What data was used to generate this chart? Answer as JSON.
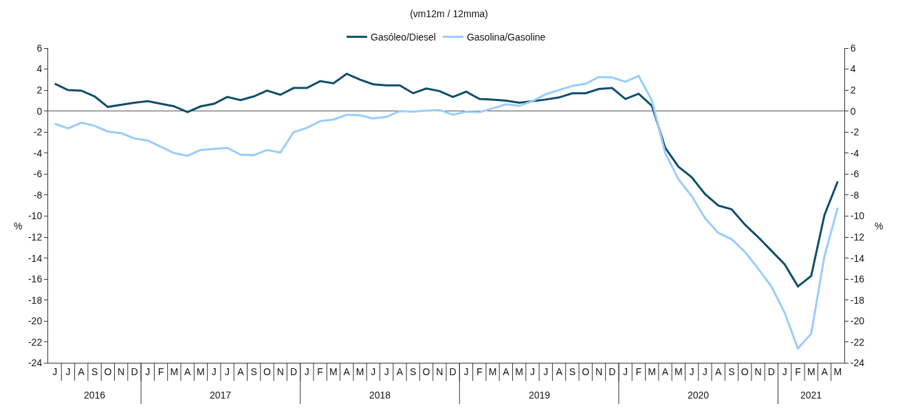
{
  "chart_data": {
    "type": "line",
    "title": "(vm12m / 12mma)",
    "ylabel": "%",
    "y2label": "%",
    "categories": [
      "J",
      "J",
      "A",
      "S",
      "O",
      "N",
      "D",
      "J",
      "F",
      "M",
      "A",
      "M",
      "J",
      "J",
      "A",
      "S",
      "O",
      "N",
      "D",
      "J",
      "F",
      "M",
      "A",
      "M",
      "J",
      "J",
      "A",
      "S",
      "O",
      "N",
      "D",
      "J",
      "F",
      "M",
      "A",
      "M",
      "J",
      "J",
      "A",
      "S",
      "O",
      "N",
      "D",
      "J",
      "F",
      "M",
      "A",
      "M",
      "J",
      "J",
      "A",
      "S",
      "O",
      "N",
      "D",
      "J",
      "F",
      "M",
      "A",
      "M"
    ],
    "series": [
      {
        "name": "Gasóleo/Diesel",
        "color": "#0e4d6b",
        "values": [
          2.6,
          2.0,
          1.95,
          1.4,
          0.4,
          0.6,
          0.8,
          0.95,
          0.7,
          0.45,
          -0.1,
          0.45,
          0.7,
          1.35,
          1.05,
          1.4,
          1.95,
          1.55,
          2.2,
          2.2,
          2.85,
          2.65,
          3.55,
          3.0,
          2.55,
          2.45,
          2.45,
          1.7,
          2.15,
          1.9,
          1.35,
          1.85,
          1.15,
          1.1,
          1.0,
          0.8,
          0.95,
          1.1,
          1.3,
          1.7,
          1.7,
          2.1,
          2.2,
          1.15,
          1.65,
          0.5,
          -3.5,
          -5.3,
          -6.3,
          -7.9,
          -9.0,
          -9.35,
          -10.8,
          -12.0,
          -13.3,
          -14.6,
          -16.7,
          -15.7,
          -9.9,
          -6.7
        ]
      },
      {
        "name": "Gasolina/Gasoline",
        "color": "#99ccff",
        "values": [
          -1.2,
          -1.65,
          -1.1,
          -1.4,
          -1.95,
          -2.1,
          -2.6,
          -2.8,
          -3.4,
          -4.0,
          -4.25,
          -3.7,
          -3.6,
          -3.5,
          -4.15,
          -4.2,
          -3.7,
          -3.95,
          -2.0,
          -1.6,
          -0.95,
          -0.8,
          -0.35,
          -0.4,
          -0.7,
          -0.55,
          0.0,
          -0.05,
          0.05,
          0.1,
          -0.35,
          -0.05,
          -0.1,
          0.25,
          0.65,
          0.5,
          0.95,
          1.6,
          2.0,
          2.4,
          2.6,
          3.25,
          3.2,
          2.8,
          3.35,
          1.0,
          -4.0,
          -6.5,
          -8.1,
          -10.2,
          -11.6,
          -12.2,
          -13.4,
          -15.0,
          -16.7,
          -19.2,
          -22.6,
          -21.2,
          -13.8,
          -9.2
        ]
      }
    ],
    "annotations": [
      "2016",
      "2017",
      "2018",
      "2019",
      "2020",
      "2021"
    ],
    "ylim": [
      -24,
      6
    ],
    "yticks": [
      -24,
      -22,
      -20,
      -18,
      -16,
      -14,
      -12,
      -10,
      -8,
      -6,
      -4,
      -2,
      0,
      2,
      4,
      6
    ],
    "y2lim": [
      -24,
      6
    ],
    "y2ticks": [
      -24,
      -22,
      -20,
      -18,
      -16,
      -14,
      -12,
      -10,
      -8,
      -6,
      -4,
      -2,
      0,
      2,
      4,
      6
    ],
    "legend": "top",
    "line_style": "solid",
    "marker": "none"
  }
}
